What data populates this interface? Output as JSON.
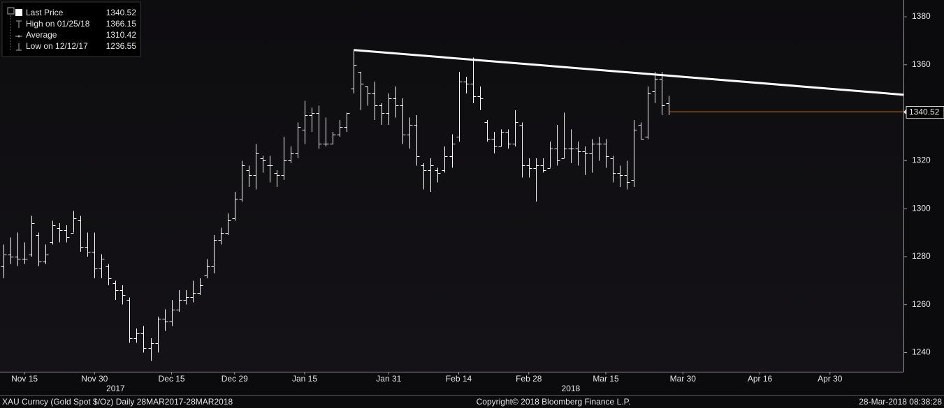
{
  "chart_data": {
    "type": "ohlc",
    "legend": [
      {
        "label": "Last Price",
        "value": 1340.52
      },
      {
        "label": "High on 01/25/18",
        "value": 1366.15
      },
      {
        "label": "Average",
        "value": 1310.42
      },
      {
        "label": "Low on 12/12/17",
        "value": 1236.55
      }
    ],
    "series": [
      {
        "color": "#ffffff",
        "open": [
          1276,
          1281,
          1280,
          1279,
          1281,
          1289,
          1278,
          1286,
          1292,
          1291,
          1290,
          1295,
          1284,
          1282,
          1275,
          1276,
          1269,
          1266,
          1262,
          1246,
          1248,
          1242,
          1244,
          1254,
          1253,
          1258,
          1262,
          1263,
          1265,
          1272,
          1276,
          1287,
          1290,
          1296,
          1304,
          1316,
          1314,
          1321,
          1318,
          1315,
          1314,
          1320,
          1323,
          1333,
          1339,
          1340,
          1327,
          1327,
          1331,
          1334,
          1350,
          1357,
          1351,
          1348,
          1343,
          1340,
          1346,
          1343,
          1331,
          1335,
          1318,
          1316,
          1316,
          1316,
          1322,
          1330,
          1353,
          1352,
          1347,
          1336,
          1329,
          1326,
          1332,
          1327,
          1335,
          1318,
          1317,
          1318,
          1317,
          1325,
          1321,
          1325,
          1325,
          1324,
          1323,
          1327,
          1327,
          1321,
          1315,
          1314,
          1312,
          1335,
          1330,
          1349,
          1354,
          1344
        ],
        "high": [
          1285,
          1288,
          1290,
          1286,
          1297,
          1290,
          1285,
          1295,
          1294,
          1293,
          1299,
          1297,
          1290,
          1290,
          1281,
          1277,
          1270,
          1268,
          1263,
          1250,
          1251,
          1246,
          1255,
          1258,
          1262,
          1266,
          1266,
          1270,
          1271,
          1279,
          1289,
          1292,
          1298,
          1307,
          1320,
          1318,
          1327,
          1322,
          1322,
          1316,
          1330,
          1326,
          1336,
          1345,
          1342,
          1343,
          1338,
          1332,
          1337,
          1340,
          1366.15,
          1357,
          1351,
          1353,
          1344,
          1348,
          1351,
          1346,
          1338,
          1339,
          1319,
          1321,
          1317,
          1326,
          1331,
          1357,
          1355,
          1363,
          1351,
          1337,
          1332,
          1333,
          1333,
          1341,
          1336,
          1321,
          1321,
          1321,
          1328,
          1335,
          1340,
          1333,
          1328,
          1326,
          1329,
          1330,
          1329,
          1322,
          1318,
          1320,
          1337,
          1336,
          1351,
          1357,
          1357,
          1347
        ],
        "low": [
          1271,
          1277,
          1276,
          1277,
          1280,
          1276,
          1277,
          1285,
          1286,
          1286,
          1290,
          1282,
          1280,
          1271,
          1271,
          1268,
          1262,
          1260,
          1244,
          1244,
          1240,
          1236.55,
          1240,
          1249,
          1251,
          1257,
          1260,
          1261,
          1264,
          1271,
          1273,
          1285,
          1289,
          1295,
          1303,
          1309,
          1308,
          1315,
          1311,
          1309,
          1312,
          1319,
          1321,
          1327,
          1332,
          1325,
          1326,
          1327,
          1330,
          1332,
          1348,
          1341,
          1343,
          1337,
          1335,
          1335,
          1338,
          1327,
          1325,
          1318,
          1308,
          1307,
          1311,
          1315,
          1317,
          1328,
          1348,
          1344,
          1341,
          1328,
          1323,
          1326,
          1325,
          1326,
          1313,
          1313,
          1303,
          1315,
          1317,
          1318,
          1321,
          1319,
          1318,
          1314,
          1315,
          1320,
          1317,
          1311,
          1309,
          1308,
          1309,
          1329,
          1329,
          1344,
          1339,
          1339
        ],
        "close": [
          1281,
          1280,
          1279,
          1279,
          1294,
          1278,
          1281,
          1293,
          1291,
          1288,
          1296,
          1284,
          1282,
          1275,
          1279,
          1271,
          1266,
          1264,
          1246,
          1248,
          1242,
          1244,
          1254,
          1253,
          1258,
          1262,
          1263,
          1265,
          1268,
          1276,
          1287,
          1290,
          1295,
          1304,
          1318,
          1314,
          1323,
          1320,
          1318,
          1314,
          1320,
          1323,
          1334,
          1339,
          1340,
          1327,
          1327,
          1331,
          1334,
          1340,
          1360,
          1352,
          1348,
          1343,
          1340,
          1346,
          1343,
          1331,
          1335,
          1322,
          1316,
          1318,
          1315,
          1322,
          1327,
          1353,
          1352,
          1347,
          1346,
          1329,
          1326,
          1332,
          1327,
          1336,
          1318,
          1317,
          1318,
          1316,
          1325,
          1320,
          1325,
          1325,
          1324,
          1323,
          1327,
          1327,
          1322,
          1315,
          1314,
          1311,
          1333,
          1329,
          1348,
          1354,
          1343,
          1340.52
        ]
      }
    ],
    "trendline": {
      "color": "#ffffff",
      "x": [
        50,
        128.5
      ],
      "values": [
        1366.15,
        1347.5
      ]
    },
    "last_price_color": "#f07a1a",
    "xlim": [
      -0.5,
      128.5
    ],
    "xticks": [
      {
        "value": 3,
        "label": "Nov 15"
      },
      {
        "value": 13,
        "label": "Nov 30"
      },
      {
        "value": 24,
        "label": "Dec 15"
      },
      {
        "value": 33,
        "label": "Dec 29"
      },
      {
        "value": 43,
        "label": "Jan 15"
      },
      {
        "value": 55,
        "label": "Jan 31"
      },
      {
        "value": 65,
        "label": "Feb 14"
      },
      {
        "value": 75,
        "label": "Feb 28"
      },
      {
        "value": 86,
        "label": "Mar 15"
      },
      {
        "value": 97,
        "label": "Mar 30"
      },
      {
        "value": 108,
        "label": "Apr 16"
      },
      {
        "value": 118,
        "label": "Apr 30"
      }
    ],
    "year_ticks": [
      {
        "value": 16,
        "label": "2017"
      },
      {
        "value": 81,
        "label": "2018"
      }
    ],
    "ylim": [
      1232,
      1387
    ],
    "yticks": [
      1240,
      1260,
      1280,
      1300,
      1320,
      1340,
      1360,
      1380
    ],
    "footer": {
      "security": "XAU Curncy (Gold Spot  $/Oz)  Daily 28MAR2017-28MAR2018",
      "copyright": "Copyright© 2018 Bloomberg Finance L.P.",
      "timestamp": "28-Mar-2018 08:38:28"
    }
  }
}
